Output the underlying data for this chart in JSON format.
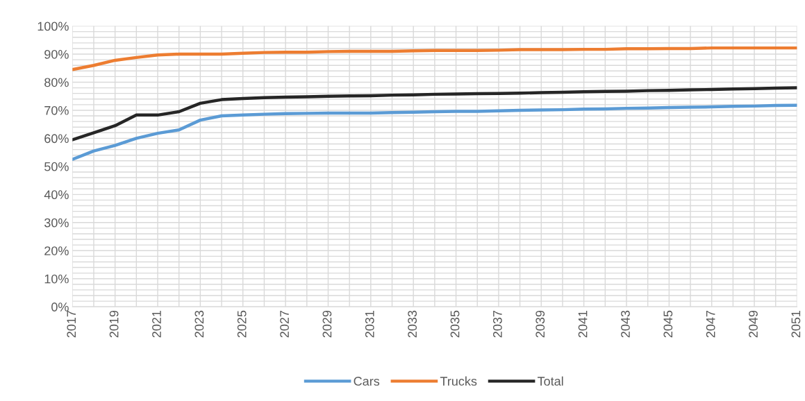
{
  "chart_data": {
    "type": "line",
    "categories": [
      "2017",
      null,
      "2019",
      null,
      "2021",
      null,
      "2023",
      null,
      "2025",
      null,
      "2027",
      null,
      "2029",
      null,
      "2031",
      null,
      "2033",
      null,
      "2035",
      null,
      "2037",
      null,
      "2039",
      null,
      "2041",
      null,
      "2043",
      null,
      "2045",
      null,
      "2047",
      null,
      "2049",
      null,
      "2051"
    ],
    "series": [
      {
        "name": "Cars",
        "color": "#5b9bd5",
        "values": [
          52.5,
          55.5,
          57.5,
          60,
          61.8,
          63,
          66.5,
          68,
          68.3,
          68.6,
          68.8,
          68.9,
          69,
          69,
          69,
          69.2,
          69.3,
          69.5,
          69.6,
          69.6,
          69.8,
          70,
          70.1,
          70.2,
          70.4,
          70.5,
          70.7,
          70.8,
          71,
          71.1,
          71.2,
          71.4,
          71.5,
          71.7,
          71.8
        ]
      },
      {
        "name": "Trucks",
        "color": "#ed7d31",
        "values": [
          84.5,
          86,
          87.8,
          88.8,
          89.7,
          90,
          90,
          90,
          90.3,
          90.6,
          90.7,
          90.7,
          90.9,
          91,
          91,
          91,
          91.2,
          91.3,
          91.3,
          91.3,
          91.4,
          91.6,
          91.6,
          91.6,
          91.7,
          91.7,
          91.9,
          91.9,
          92,
          92,
          92.2,
          92.2,
          92.2,
          92.2,
          92.2
        ]
      },
      {
        "name": "Total",
        "color": "#262626",
        "values": [
          59.5,
          62,
          64.5,
          68.3,
          68.3,
          69.5,
          72.5,
          73.8,
          74.2,
          74.5,
          74.7,
          74.8,
          75,
          75.1,
          75.2,
          75.4,
          75.5,
          75.7,
          75.8,
          75.9,
          76,
          76.1,
          76.3,
          76.4,
          76.6,
          76.7,
          76.8,
          77,
          77.1,
          77.3,
          77.4,
          77.6,
          77.7,
          77.9,
          78
        ]
      }
    ],
    "ylim": [
      0,
      100
    ],
    "yticks": [
      {
        "value": 0,
        "label": "0%"
      },
      {
        "value": 2,
        "label": null
      },
      {
        "value": 4,
        "label": null
      },
      {
        "value": 6,
        "label": null
      },
      {
        "value": 8,
        "label": null
      },
      {
        "value": 10,
        "label": "10%"
      },
      {
        "value": 12,
        "label": null
      },
      {
        "value": 14,
        "label": null
      },
      {
        "value": 16,
        "label": null
      },
      {
        "value": 18,
        "label": null
      },
      {
        "value": 20,
        "label": "20%"
      },
      {
        "value": 22,
        "label": null
      },
      {
        "value": 24,
        "label": null
      },
      {
        "value": 26,
        "label": null
      },
      {
        "value": 28,
        "label": null
      },
      {
        "value": 30,
        "label": "30%"
      },
      {
        "value": 32,
        "label": null
      },
      {
        "value": 34,
        "label": null
      },
      {
        "value": 36,
        "label": null
      },
      {
        "value": 38,
        "label": null
      },
      {
        "value": 40,
        "label": "40%"
      },
      {
        "value": 42,
        "label": null
      },
      {
        "value": 44,
        "label": null
      },
      {
        "value": 46,
        "label": null
      },
      {
        "value": 48,
        "label": null
      },
      {
        "value": 50,
        "label": "50%"
      },
      {
        "value": 52,
        "label": null
      },
      {
        "value": 54,
        "label": null
      },
      {
        "value": 56,
        "label": null
      },
      {
        "value": 58,
        "label": null
      },
      {
        "value": 60,
        "label": "60%"
      },
      {
        "value": 62,
        "label": null
      },
      {
        "value": 64,
        "label": null
      },
      {
        "value": 66,
        "label": null
      },
      {
        "value": 68,
        "label": null
      },
      {
        "value": 70,
        "label": "70%"
      },
      {
        "value": 72,
        "label": null
      },
      {
        "value": 74,
        "label": null
      },
      {
        "value": 76,
        "label": null
      },
      {
        "value": 78,
        "label": null
      },
      {
        "value": 80,
        "label": "80%"
      },
      {
        "value": 82,
        "label": null
      },
      {
        "value": 84,
        "label": null
      },
      {
        "value": 86,
        "label": null
      },
      {
        "value": 88,
        "label": null
      },
      {
        "value": 90,
        "label": "90%"
      },
      {
        "value": 92,
        "label": null
      },
      {
        "value": 94,
        "label": null
      },
      {
        "value": 96,
        "label": null
      },
      {
        "value": 98,
        "label": null
      },
      {
        "value": 100,
        "label": "100%"
      }
    ],
    "grid": true,
    "legend": "bottom",
    "marker": "none",
    "line_style": "solid"
  }
}
